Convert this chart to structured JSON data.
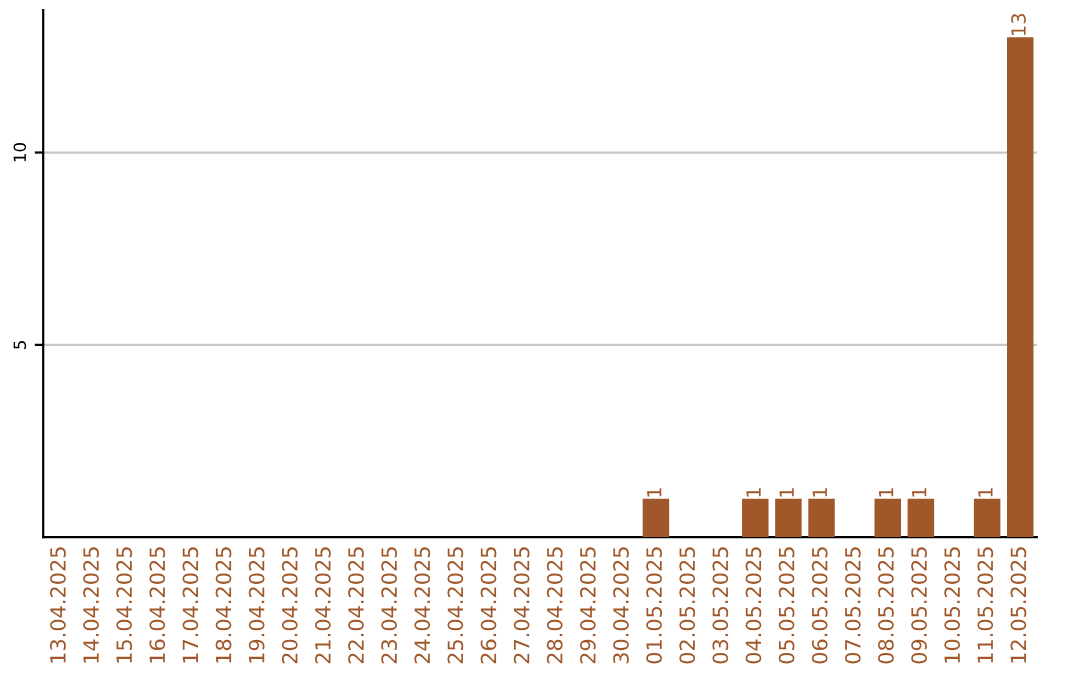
{
  "chart_data": {
    "type": "bar",
    "categories": [
      "13.04.2025",
      "14.04.2025",
      "15.04.2025",
      "16.04.2025",
      "17.04.2025",
      "18.04.2025",
      "19.04.2025",
      "20.04.2025",
      "21.04.2025",
      "22.04.2025",
      "23.04.2025",
      "24.04.2025",
      "25.04.2025",
      "26.04.2025",
      "27.04.2025",
      "28.04.2025",
      "29.04.2025",
      "30.04.2025",
      "01.05.2025",
      "02.05.2025",
      "03.05.2025",
      "04.05.2025",
      "05.05.2025",
      "06.05.2025",
      "07.05.2025",
      "08.05.2025",
      "09.05.2025",
      "10.05.2025",
      "11.05.2025",
      "12.05.2025"
    ],
    "values": [
      0,
      0,
      0,
      0,
      0,
      0,
      0,
      0,
      0,
      0,
      0,
      0,
      0,
      0,
      0,
      0,
      0,
      0,
      1,
      0,
      0,
      1,
      1,
      1,
      0,
      1,
      1,
      0,
      1,
      13
    ],
    "value_labels": [
      null,
      null,
      null,
      null,
      null,
      null,
      null,
      null,
      null,
      null,
      null,
      null,
      null,
      null,
      null,
      null,
      null,
      null,
      "1",
      null,
      null,
      "1",
      "1",
      "1",
      null,
      "1",
      "1",
      null,
      "1",
      "13"
    ],
    "color": "#a0582a",
    "ylim": [
      0,
      13.7
    ],
    "yticks": [
      5,
      10
    ],
    "grid": "y"
  }
}
